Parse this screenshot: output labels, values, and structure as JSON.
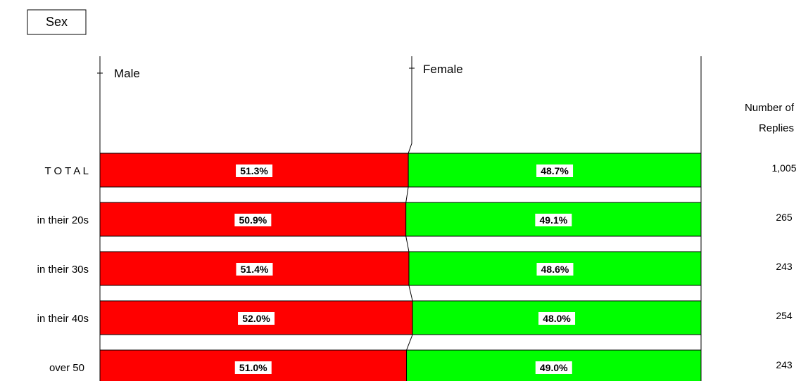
{
  "title": "Sex",
  "header": {
    "replies_label_line1": "Number of",
    "replies_label_line2": "Replies"
  },
  "colors": {
    "male": "#ff0000",
    "female": "#00ff00",
    "line": "#000000",
    "label_bg": "#ffffff"
  },
  "chart_data": {
    "type": "bar",
    "stacked": true,
    "orientation": "horizontal",
    "percent": true,
    "title": "Sex",
    "categories": [
      "T O T A L",
      "in their 20s",
      "in their 30s",
      "in their 40s",
      "over 50"
    ],
    "series": [
      {
        "name": "Male",
        "values": [
          51.3,
          50.9,
          51.4,
          52.0,
          51.0
        ],
        "labels": [
          "51.3%",
          "50.9%",
          "51.4%",
          "52.0%",
          "51.0%"
        ]
      },
      {
        "name": "Female",
        "values": [
          48.7,
          49.1,
          48.6,
          48.0,
          49.0
        ],
        "labels": [
          "48.7%",
          "49.1%",
          "48.6%",
          "48.0%",
          "49.0%"
        ]
      }
    ],
    "number_of_replies": [
      "1,005",
      "265",
      "243",
      "254",
      "243"
    ],
    "xlim": [
      0,
      100
    ],
    "grid": false,
    "legend": "top"
  }
}
